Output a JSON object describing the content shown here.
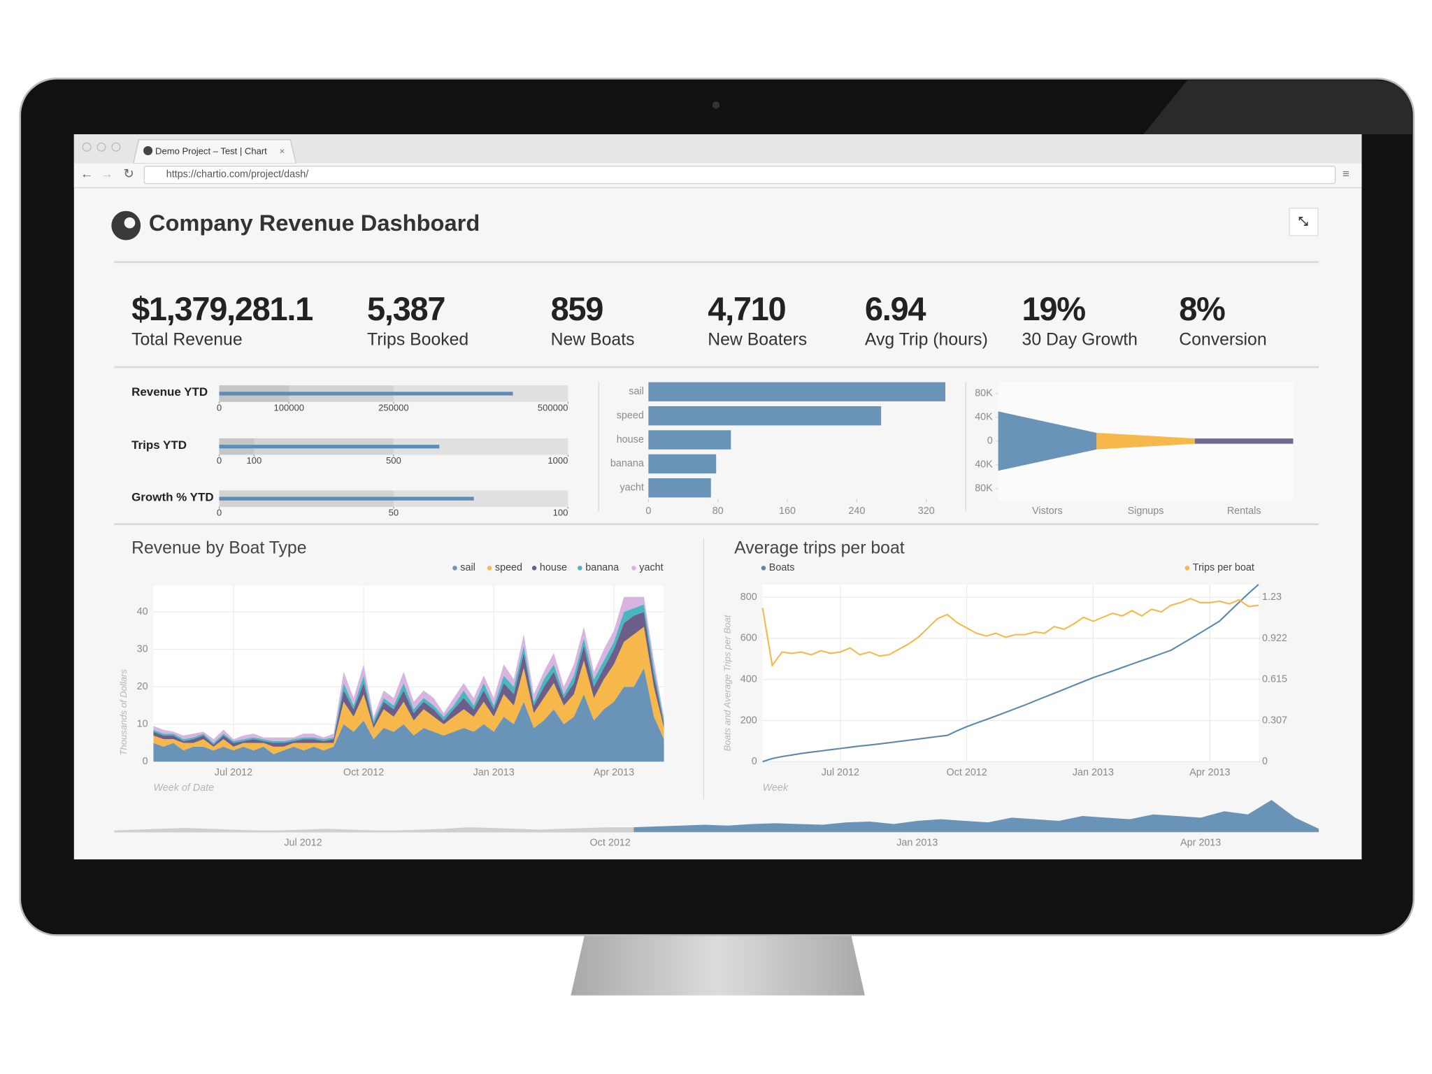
{
  "browser": {
    "tab_title": "Demo Project – Test | Chart",
    "url": "https://chartio.com/project/dash/"
  },
  "dashboard": {
    "title": "Company Revenue Dashboard",
    "kpis": [
      {
        "value": "$1,379,281.1",
        "label": "Total Revenue"
      },
      {
        "value": "5,387",
        "label": "Trips Booked"
      },
      {
        "value": "859",
        "label": "New Boats"
      },
      {
        "value": "4,710",
        "label": "New Boaters"
      },
      {
        "value": "6.94",
        "label": "Avg Trip (hours)"
      },
      {
        "value": "19%",
        "label": "30 Day Growth"
      },
      {
        "value": "8%",
        "label": "Conversion"
      }
    ]
  },
  "chart_data": [
    {
      "type": "bullet",
      "title": "Revenue YTD",
      "value": 421000,
      "ranges": [
        100000,
        250000,
        500000
      ],
      "xlim": [
        0,
        500000
      ],
      "xticks": [
        0,
        100000,
        250000,
        500000
      ],
      "color": "#5b8db8"
    },
    {
      "type": "bullet",
      "title": "Trips YTD",
      "value": 631,
      "ranges": [
        100,
        500,
        1000
      ],
      "xlim": [
        0,
        1000
      ],
      "xticks": [
        0,
        100,
        500,
        1000
      ],
      "color": "#5b8db8"
    },
    {
      "type": "bullet",
      "title": "Growth % YTD",
      "value": 73,
      "ranges": [
        50,
        100
      ],
      "xlim": [
        0,
        100
      ],
      "xticks": [
        0,
        50,
        100
      ],
      "color": "#5b8db8"
    },
    {
      "type": "hbar",
      "categories": [
        "sail",
        "speed",
        "house",
        "banana",
        "yacht"
      ],
      "values": [
        342,
        268,
        95,
        78,
        72
      ],
      "xlim": [
        0,
        345
      ],
      "xticks": [
        0,
        80,
        160,
        240,
        320
      ],
      "color": "#6a93b8"
    },
    {
      "type": "funnel",
      "categories": [
        "Vistors",
        "Signups",
        "Rentals"
      ],
      "values": [
        100000,
        28000,
        9000
      ],
      "colors": [
        "#6a93b8",
        "#f6b84b",
        "#6f6a91"
      ],
      "ylim": [
        -100000,
        100000
      ],
      "yticks": [
        {
          "value": 80000,
          "label": "80K"
        },
        {
          "value": 40000,
          "label": "40K"
        },
        0,
        {
          "value": -40000,
          "label": "40K"
        },
        {
          "value": -80000,
          "label": "80K"
        }
      ]
    },
    {
      "type": "stacked_area",
      "title": "Revenue by Boat Type",
      "y_label": "Thousands of Dollars",
      "x_label": "Week of Date",
      "categories": [
        null,
        null,
        null,
        null,
        null,
        null,
        null,
        null,
        "Jul 2012",
        null,
        null,
        null,
        null,
        null,
        null,
        null,
        null,
        null,
        null,
        null,
        null,
        "Oct 2012",
        null,
        null,
        null,
        null,
        null,
        null,
        null,
        null,
        null,
        null,
        null,
        null,
        "Jan 2013",
        null,
        null,
        null,
        null,
        null,
        null,
        null,
        null,
        null,
        null,
        null,
        "Apr 2013",
        null,
        null,
        null,
        null,
        null
      ],
      "ylim": [
        0,
        47
      ],
      "yticks": [
        0,
        10,
        20,
        30,
        40
      ],
      "grid": true,
      "series": [
        {
          "name": "sail",
          "color": "#6a93b8",
          "values": [
            5,
            4,
            5,
            3,
            4,
            4,
            3,
            4,
            3,
            4,
            3,
            4,
            2,
            3,
            4,
            3,
            4,
            3,
            4,
            10,
            8,
            11,
            6,
            9,
            8,
            10,
            7,
            9,
            8,
            7,
            8,
            9,
            8,
            10,
            8,
            12,
            10,
            16,
            9,
            11,
            14,
            10,
            12,
            18,
            11,
            14,
            16,
            20,
            20,
            25,
            12,
            6
          ]
        },
        {
          "name": "speed",
          "color": "#f6b84b",
          "values": [
            2,
            2,
            1,
            2,
            1,
            2,
            1,
            2,
            1,
            1,
            2,
            1,
            2,
            1,
            1,
            2,
            1,
            2,
            1,
            6,
            4,
            7,
            3,
            5,
            4,
            6,
            4,
            5,
            4,
            3,
            4,
            5,
            4,
            6,
            4,
            6,
            5,
            9,
            4,
            6,
            7,
            5,
            6,
            9,
            6,
            8,
            10,
            12,
            14,
            11,
            8,
            3
          ]
        },
        {
          "name": "house",
          "color": "#6b5f8a",
          "values": [
            1,
            1,
            1,
            0.5,
            1,
            1,
            0.5,
            1,
            1,
            0.5,
            1,
            0.5,
            1,
            1,
            0.5,
            1,
            1,
            0.5,
            1,
            3,
            2,
            3,
            1,
            2,
            2,
            3,
            2,
            2,
            2,
            1,
            2,
            3,
            2,
            3,
            2,
            3,
            3,
            4,
            2,
            3,
            3,
            2,
            3,
            4,
            3,
            3,
            4,
            5,
            5,
            4,
            3,
            1
          ]
        },
        {
          "name": "banana",
          "color": "#49b6c0",
          "values": [
            0.5,
            0.5,
            0.5,
            0.5,
            0.5,
            0.5,
            0.5,
            0.5,
            0.5,
            0.5,
            0.5,
            0.5,
            0.5,
            0.5,
            0.5,
            0.5,
            0.5,
            0.5,
            0.5,
            2,
            1,
            2,
            1,
            1,
            1,
            2,
            1,
            1,
            1,
            1,
            1,
            2,
            1,
            2,
            1,
            2,
            2,
            2,
            1,
            2,
            2,
            1,
            2,
            2,
            2,
            2,
            2,
            3,
            2,
            2,
            2,
            1
          ]
        },
        {
          "name": "yacht",
          "color": "#d7b5e0",
          "values": [
            1,
            1,
            0.5,
            1,
            1,
            0.5,
            1,
            1,
            0.5,
            1,
            1,
            0.5,
            1,
            1,
            0.5,
            1,
            1,
            0.5,
            1,
            3,
            2,
            3,
            1,
            2,
            2,
            3,
            2,
            2,
            2,
            1,
            2,
            2,
            2,
            2,
            2,
            3,
            2,
            3,
            2,
            2,
            3,
            2,
            3,
            3,
            2,
            3,
            3,
            4,
            3,
            2,
            2,
            1
          ]
        }
      ]
    },
    {
      "type": "dual_line",
      "title": "Average trips per boat",
      "y_label": "Boats and Average Trips per Boat",
      "x_label": "Week",
      "categories": [
        null,
        null,
        null,
        null,
        null,
        null,
        null,
        null,
        "Jul 2012",
        null,
        null,
        null,
        null,
        null,
        null,
        null,
        null,
        null,
        null,
        null,
        null,
        "Oct 2012",
        null,
        null,
        null,
        null,
        null,
        null,
        null,
        null,
        null,
        null,
        null,
        null,
        "Jan 2013",
        null,
        null,
        null,
        null,
        null,
        null,
        null,
        null,
        null,
        null,
        null,
        "Apr 2013",
        null,
        null,
        null,
        null,
        null
      ],
      "ylim": [
        0,
        862
      ],
      "yticks": [
        0,
        200,
        400,
        600,
        800
      ],
      "y2lim": [
        0,
        1.325
      ],
      "y2ticks": [
        0,
        0.307,
        0.615,
        0.922,
        1.23
      ],
      "grid": true,
      "series": [
        {
          "name": "Boats",
          "color": "#5b86ad",
          "values": [
            0,
            15,
            25,
            32,
            40,
            46,
            52,
            58,
            64,
            70,
            76,
            81,
            86,
            92,
            98,
            104,
            110,
            116,
            122,
            128,
            150,
            170,
            188,
            205,
            222,
            240,
            258,
            276,
            295,
            314,
            333,
            352,
            371,
            390,
            409,
            425,
            441,
            458,
            475,
            492,
            508,
            525,
            542,
            570,
            598,
            626,
            655,
            684,
            730,
            775,
            820,
            862
          ]
        },
        {
          "name": "Trips per boat",
          "color": "#f6b84b",
          "axis": "y2",
          "values": [
            1.15,
            0.72,
            0.82,
            0.81,
            0.82,
            0.8,
            0.83,
            0.81,
            0.82,
            0.85,
            0.8,
            0.82,
            0.79,
            0.8,
            0.84,
            0.88,
            0.93,
            1.0,
            1.07,
            1.1,
            1.04,
            1.0,
            0.96,
            0.94,
            0.96,
            0.93,
            0.95,
            0.95,
            0.97,
            0.96,
            1.01,
            0.99,
            1.03,
            1.08,
            1.05,
            1.08,
            1.11,
            1.09,
            1.13,
            1.09,
            1.14,
            1.12,
            1.17,
            1.19,
            1.22,
            1.19,
            1.19,
            1.2,
            1.18,
            1.21,
            1.16,
            1.17
          ]
        }
      ]
    },
    {
      "type": "overview",
      "categories": [
        null,
        null,
        null,
        null,
        null,
        null,
        null,
        null,
        "Jul 2012",
        null,
        null,
        null,
        null,
        null,
        null,
        null,
        null,
        null,
        null,
        null,
        null,
        "Oct 2012",
        null,
        null,
        null,
        null,
        null,
        null,
        null,
        null,
        null,
        null,
        null,
        null,
        "Jan 2013",
        null,
        null,
        null,
        null,
        null,
        null,
        null,
        null,
        null,
        null,
        null,
        "Apr 2013",
        null,
        null,
        null,
        null,
        null
      ],
      "values": [
        1,
        1.5,
        2,
        2.5,
        2,
        1.5,
        1,
        1,
        1.5,
        2,
        1.5,
        1,
        1,
        1.5,
        2,
        3,
        2.5,
        2,
        1.5,
        2,
        2.5,
        3,
        3,
        3.5,
        4,
        4.5,
        4,
        5,
        5.5,
        5,
        4.5,
        6,
        6.5,
        5,
        7,
        8,
        7,
        6,
        9,
        8,
        7,
        10,
        9,
        8,
        11,
        10,
        9,
        13,
        11,
        20,
        9,
        2
      ],
      "ylim": [
        0,
        22
      ],
      "selection_start": 22,
      "colors": [
        "#cfcfcf",
        "#6a93b8"
      ]
    }
  ]
}
